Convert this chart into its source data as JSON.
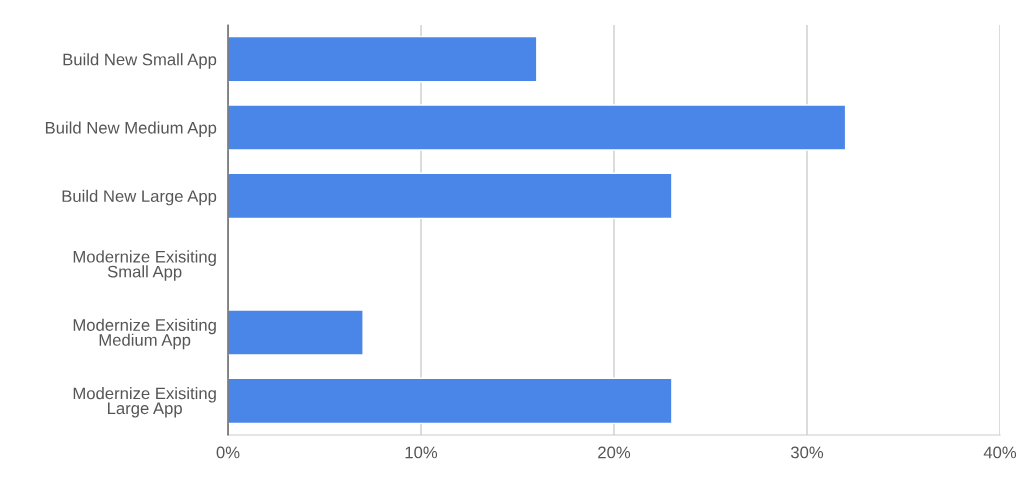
{
  "chart_data": {
    "type": "bar",
    "orientation": "horizontal",
    "categories": [
      "Build New Small App",
      "Build New Medium App",
      "Build New Large App",
      "Modernize Exisiting\nSmall App",
      "Modernize Exisiting\nMedium App",
      "Modernize Exisiting\nLarge App"
    ],
    "values": [
      16,
      32,
      23,
      null,
      7,
      23
    ],
    "color": "#4a86e8",
    "xlim": [
      0,
      40
    ],
    "xticks": [
      {
        "value": 0,
        "label": "0%"
      },
      {
        "value": 10,
        "label": "10%"
      },
      {
        "value": 20,
        "label": "20%"
      },
      {
        "value": 30,
        "label": "30%"
      },
      {
        "value": 40,
        "label": "40%"
      }
    ],
    "grid": "x"
  }
}
